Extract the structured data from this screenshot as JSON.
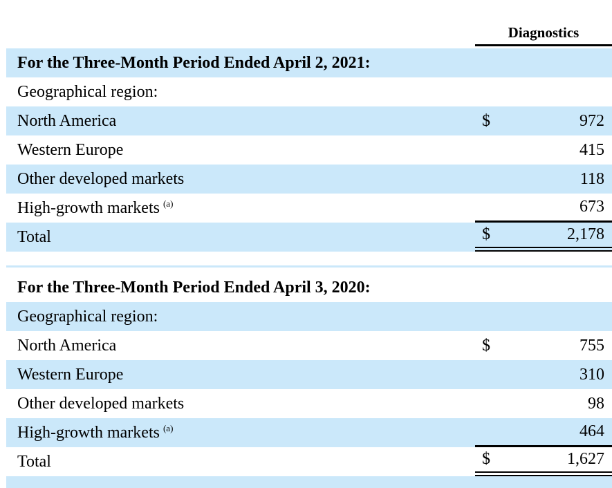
{
  "colors": {
    "background": "#ffffff",
    "stripe": "#cbe8fa",
    "text": "#000000",
    "rule": "#000000"
  },
  "column_header": {
    "label": "Diagnostics"
  },
  "tables": [
    {
      "title": "For the Three-Month Period Ended April 2, 2021:",
      "section_label": "Geographical region:",
      "rows": [
        {
          "label": "North America",
          "currency": "$",
          "value": "972"
        },
        {
          "label": "Western Europe",
          "value": "415"
        },
        {
          "label": "Other developed markets",
          "value": "118"
        },
        {
          "label": "High-growth markets",
          "footnote": "(a)",
          "value": "673"
        }
      ],
      "total": {
        "label": "Total",
        "currency": "$",
        "value": "2,178"
      }
    },
    {
      "title": "For the Three-Month Period Ended April 3, 2020:",
      "section_label": "Geographical region:",
      "rows": [
        {
          "label": "North America",
          "currency": "$",
          "value": "755"
        },
        {
          "label": "Western Europe",
          "value": "310"
        },
        {
          "label": "Other developed markets",
          "value": "98"
        },
        {
          "label": "High-growth markets",
          "footnote": "(a)",
          "value": "464"
        }
      ],
      "total": {
        "label": "Total",
        "currency": "$",
        "value": "1,627"
      }
    }
  ]
}
